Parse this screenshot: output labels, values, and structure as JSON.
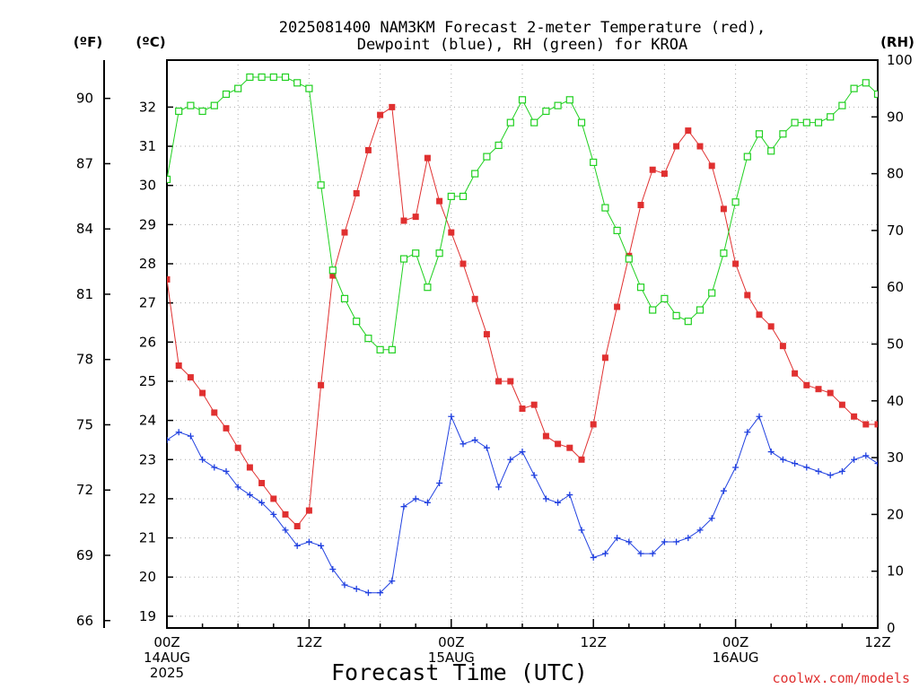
{
  "chart_data": {
    "type": "line",
    "title": [
      "2025081400 NAM3KM Forecast 2-meter Temperature (red),",
      "Dewpoint (blue), RH (green) for KROA"
    ],
    "xlabel": "Forecast Time (UTC)",
    "credit": "coolwx.com/models",
    "units": {
      "degF": "(ºF)",
      "degC": "(ºC)",
      "rh": "(RH)"
    },
    "axes": {
      "x_hours": [
        0,
        60
      ],
      "temp_c_range": [
        18.7,
        33.2
      ],
      "rh_range": [
        0,
        100
      ],
      "ticks_f": [
        66,
        69,
        72,
        75,
        78,
        81,
        84,
        87,
        90
      ],
      "ticks_c": [
        19,
        20,
        21,
        22,
        23,
        24,
        25,
        26,
        27,
        28,
        29,
        30,
        31,
        32
      ],
      "ticks_rh": [
        0,
        10,
        20,
        30,
        40,
        50,
        60,
        70,
        80,
        90,
        100
      ],
      "x_ticks": [
        {
          "hour": 0,
          "lines": [
            "00Z",
            "14AUG",
            "2025"
          ]
        },
        {
          "hour": 12,
          "lines": [
            "12Z"
          ]
        },
        {
          "hour": 24,
          "lines": [
            "00Z",
            "15AUG"
          ]
        },
        {
          "hour": 36,
          "lines": [
            "12Z"
          ]
        },
        {
          "hour": 48,
          "lines": [
            "00Z",
            "16AUG"
          ]
        },
        {
          "hour": 60,
          "lines": [
            "12Z"
          ]
        }
      ],
      "grid": true
    },
    "colors": {
      "temperature": "#e03030",
      "dewpoint": "#2040e0",
      "rh": "#20d020"
    },
    "series": [
      {
        "key": "temperature",
        "axis": "temp_c",
        "marker": "square",
        "values": [
          27.6,
          25.4,
          25.1,
          24.7,
          24.2,
          23.8,
          23.3,
          22.8,
          22.4,
          22.0,
          21.6,
          21.3,
          21.7,
          24.9,
          27.7,
          28.8,
          29.8,
          30.9,
          31.8,
          32.0,
          29.1,
          29.2,
          30.7,
          29.6,
          28.8,
          28.0,
          27.1,
          26.2,
          25.0,
          25.0,
          24.3,
          24.4,
          23.6,
          23.4,
          23.3,
          23.0,
          23.9,
          25.6,
          26.9,
          28.2,
          29.5,
          30.4,
          30.3,
          31.0,
          31.4,
          31.0,
          30.5,
          29.4,
          28.0,
          27.2,
          26.7,
          26.4,
          25.9,
          25.2,
          24.9,
          24.8,
          24.7,
          24.4,
          24.1,
          23.9,
          23.9,
          24.1
        ],
        "x_hours": [
          0,
          1,
          2,
          3,
          4,
          5,
          6,
          7,
          8,
          9,
          10,
          11,
          12,
          13,
          14,
          15,
          16,
          17,
          18,
          19,
          20,
          21,
          22,
          23,
          24,
          25,
          26,
          27,
          28,
          29,
          30,
          31,
          32,
          33,
          34,
          35,
          36,
          37,
          38,
          39,
          40,
          41,
          42,
          43,
          44,
          45,
          46,
          47,
          48,
          49,
          50,
          51,
          52,
          53,
          54,
          55,
          56,
          57,
          58,
          59,
          60,
          61
        ]
      },
      {
        "key": "dewpoint",
        "axis": "temp_c",
        "marker": "plus",
        "values": [
          23.5,
          23.7,
          23.6,
          23.0,
          22.8,
          22.7,
          22.3,
          22.1,
          21.9,
          21.6,
          21.2,
          20.8,
          20.9,
          20.8,
          20.2,
          19.8,
          19.7,
          19.6,
          19.6,
          19.9,
          21.8,
          22.0,
          21.9,
          22.4,
          24.1,
          23.4,
          23.5,
          23.3,
          22.3,
          23.0,
          23.2,
          22.6,
          22.0,
          21.9,
          22.1,
          21.2,
          20.5,
          20.6,
          21.0,
          20.9,
          20.6,
          20.6,
          20.9,
          20.9,
          21.0,
          21.2,
          21.5,
          22.2,
          22.8,
          23.7,
          24.1,
          23.2,
          23.0,
          22.9,
          22.8,
          22.7,
          22.6,
          22.7,
          23.0,
          23.1,
          22.9
        ],
        "x_hours": [
          0,
          1,
          2,
          3,
          4,
          5,
          6,
          7,
          8,
          9,
          10,
          11,
          12,
          13,
          14,
          15,
          16,
          17,
          18,
          19,
          20,
          21,
          22,
          23,
          24,
          25,
          26,
          27,
          28,
          29,
          30,
          31,
          32,
          33,
          34,
          35,
          36,
          37,
          38,
          39,
          40,
          41,
          42,
          43,
          44,
          45,
          46,
          47,
          48,
          49,
          50,
          51,
          52,
          53,
          54,
          55,
          56,
          57,
          58,
          59,
          60
        ]
      },
      {
        "key": "rh",
        "axis": "rh",
        "marker": "open-square",
        "values": [
          79,
          91,
          92,
          91,
          92,
          94,
          95,
          97,
          97,
          97,
          97,
          96,
          95,
          78,
          63,
          58,
          54,
          51,
          49,
          49,
          65,
          66,
          60,
          66,
          76,
          76,
          80,
          83,
          85,
          89,
          93,
          89,
          91,
          92,
          93,
          89,
          82,
          74,
          70,
          65,
          60,
          56,
          58,
          55,
          54,
          56,
          59,
          66,
          75,
          83,
          87,
          84,
          87,
          89,
          89,
          89,
          90,
          92,
          95,
          96,
          94
        ],
        "x_hours": [
          0,
          1,
          2,
          3,
          4,
          5,
          6,
          7,
          8,
          9,
          10,
          11,
          12,
          13,
          14,
          15,
          16,
          17,
          18,
          19,
          20,
          21,
          22,
          23,
          24,
          25,
          26,
          27,
          28,
          29,
          30,
          31,
          32,
          33,
          34,
          35,
          36,
          37,
          38,
          39,
          40,
          41,
          42,
          43,
          44,
          45,
          46,
          47,
          48,
          49,
          50,
          51,
          52,
          53,
          54,
          55,
          56,
          57,
          58,
          59,
          60
        ]
      }
    ]
  }
}
